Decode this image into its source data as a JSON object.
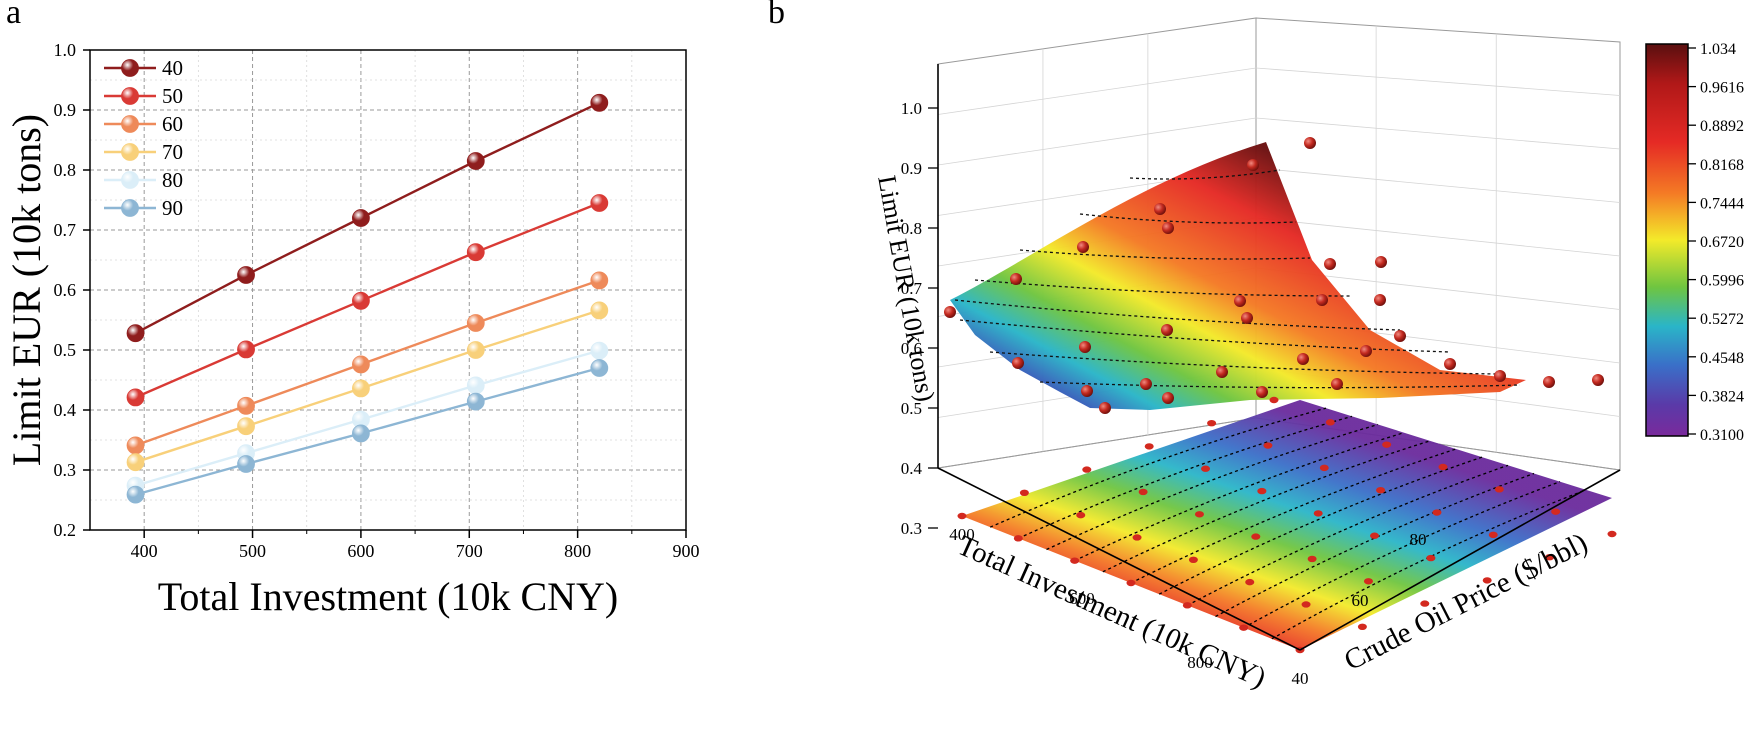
{
  "panel_labels": {
    "a": "a",
    "b": "b"
  },
  "chart_data": [
    {
      "type": "line",
      "panel": "a",
      "title": "",
      "xlabel": "Total Investment (10k CNY)",
      "ylabel": "Limit EUR (10k tons)",
      "xlim": [
        350,
        900
      ],
      "ylim": [
        0.2,
        1.0
      ],
      "xticks": [
        400,
        500,
        600,
        700,
        800,
        900
      ],
      "yticks": [
        0.2,
        0.3,
        0.4,
        0.5,
        0.6,
        0.7,
        0.8,
        0.9,
        1.0
      ],
      "xtick_labels": [
        "400",
        "500",
        "600",
        "700",
        "800",
        "900"
      ],
      "ytick_labels": [
        "0.2",
        "0.3",
        "0.4",
        "0.5",
        "0.6",
        "0.7",
        "0.8",
        "0.9",
        "1.0"
      ],
      "grid": true,
      "legend_position": "top-left",
      "x": [
        392,
        494,
        600,
        706,
        820
      ],
      "series": [
        {
          "name": "40",
          "color": "#8f1d1d",
          "values": [
            0.528,
            0.625,
            0.72,
            0.815,
            0.912
          ]
        },
        {
          "name": "50",
          "color": "#d93a35",
          "values": [
            0.421,
            0.501,
            0.582,
            0.663,
            0.745
          ]
        },
        {
          "name": "60",
          "color": "#ee8a5a",
          "values": [
            0.341,
            0.407,
            0.476,
            0.545,
            0.616
          ]
        },
        {
          "name": "70",
          "color": "#f8d07a",
          "values": [
            0.313,
            0.373,
            0.436,
            0.5,
            0.566
          ]
        },
        {
          "name": "80",
          "color": "#dbeef8",
          "values": [
            0.274,
            0.328,
            0.384,
            0.441,
            0.499
          ]
        },
        {
          "name": "90",
          "color": "#8db6d4",
          "values": [
            0.259,
            0.31,
            0.361,
            0.414,
            0.47
          ]
        }
      ]
    },
    {
      "type": "surface3d",
      "panel": "b",
      "title": "",
      "xlabel": "Total Investment (10k CNY)",
      "ylabel": "Crude Oil Price ($/bbl)",
      "zlabel": "Limit EUR (10k tons)",
      "xticks": [
        400,
        600,
        800
      ],
      "yticks": [
        40,
        60,
        80
      ],
      "zticks": [
        0.3,
        0.4,
        0.5,
        0.6,
        0.7,
        0.8,
        0.9,
        1.0
      ],
      "xtick_labels": [
        "400",
        "600",
        "800"
      ],
      "ytick_labels": [
        "40",
        "60",
        "80"
      ],
      "ztick_labels": [
        "0.3",
        "0.4",
        "0.5",
        "0.6",
        "0.7",
        "0.8",
        "0.9",
        "1.0"
      ],
      "zlim": [
        0.3,
        1.034
      ],
      "colorbar": {
        "min": 0.31,
        "max": 1.034,
        "tick_labels": [
          "1.034",
          "0.9616",
          "0.8892",
          "0.8168",
          "0.7444",
          "0.6720",
          "0.5996",
          "0.5272",
          "0.4548",
          "0.3824",
          "0.3100"
        ]
      }
    }
  ]
}
